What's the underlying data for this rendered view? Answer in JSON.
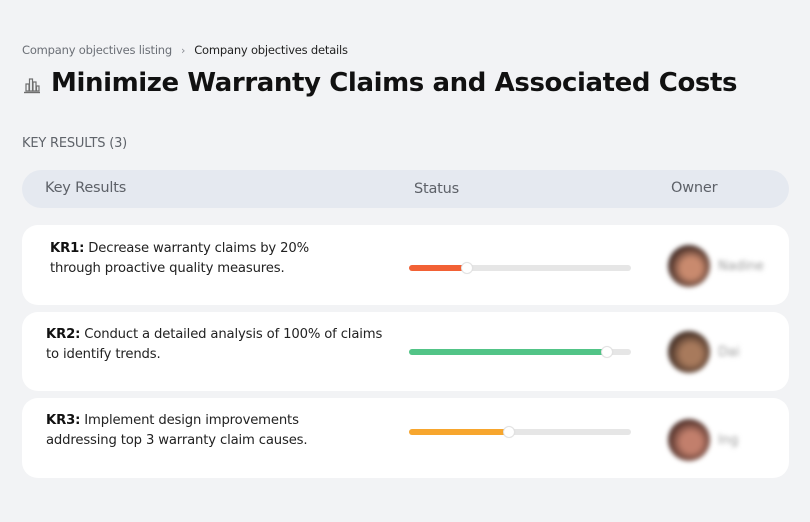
{
  "breadcrumb": {
    "items": [
      {
        "label": "Company objectives listing"
      },
      {
        "label": "Company objectives details"
      }
    ],
    "separator": "›"
  },
  "objective": {
    "icon": "bar-chart-building-icon",
    "title": "Minimize Warranty Claims and Associated Costs"
  },
  "key_results_section": {
    "label": "KEY RESULTS (3)",
    "count": 3
  },
  "table": {
    "columns": [
      {
        "label": "Key Results"
      },
      {
        "label": "Status"
      },
      {
        "label": "Owner"
      }
    ],
    "rows": [
      {
        "id": "KR1:",
        "text": "Decrease warranty claims by 20% through proactive quality measures.",
        "progress": 26,
        "progress_color": "#f26135",
        "owner": {
          "name": "Nadine",
          "avatar_colors": [
            "#3a2520",
            "#c98a6e"
          ]
        }
      },
      {
        "id": "KR2:",
        "text": "Conduct a detailed analysis of 100% of claims to identify trends.",
        "progress": 89,
        "progress_color": "#52c487",
        "owner": {
          "name": "Dai",
          "avatar_colors": [
            "#3d2a22",
            "#a87a5c"
          ]
        }
      },
      {
        "id": "KR3:",
        "text": "Implement design improvements addressing top 3 warranty claim causes.",
        "progress": 45,
        "progress_color": "#f7a62e",
        "owner": {
          "name": "Ing",
          "avatar_colors": [
            "#4a2c26",
            "#c27f6c"
          ]
        }
      }
    ]
  }
}
